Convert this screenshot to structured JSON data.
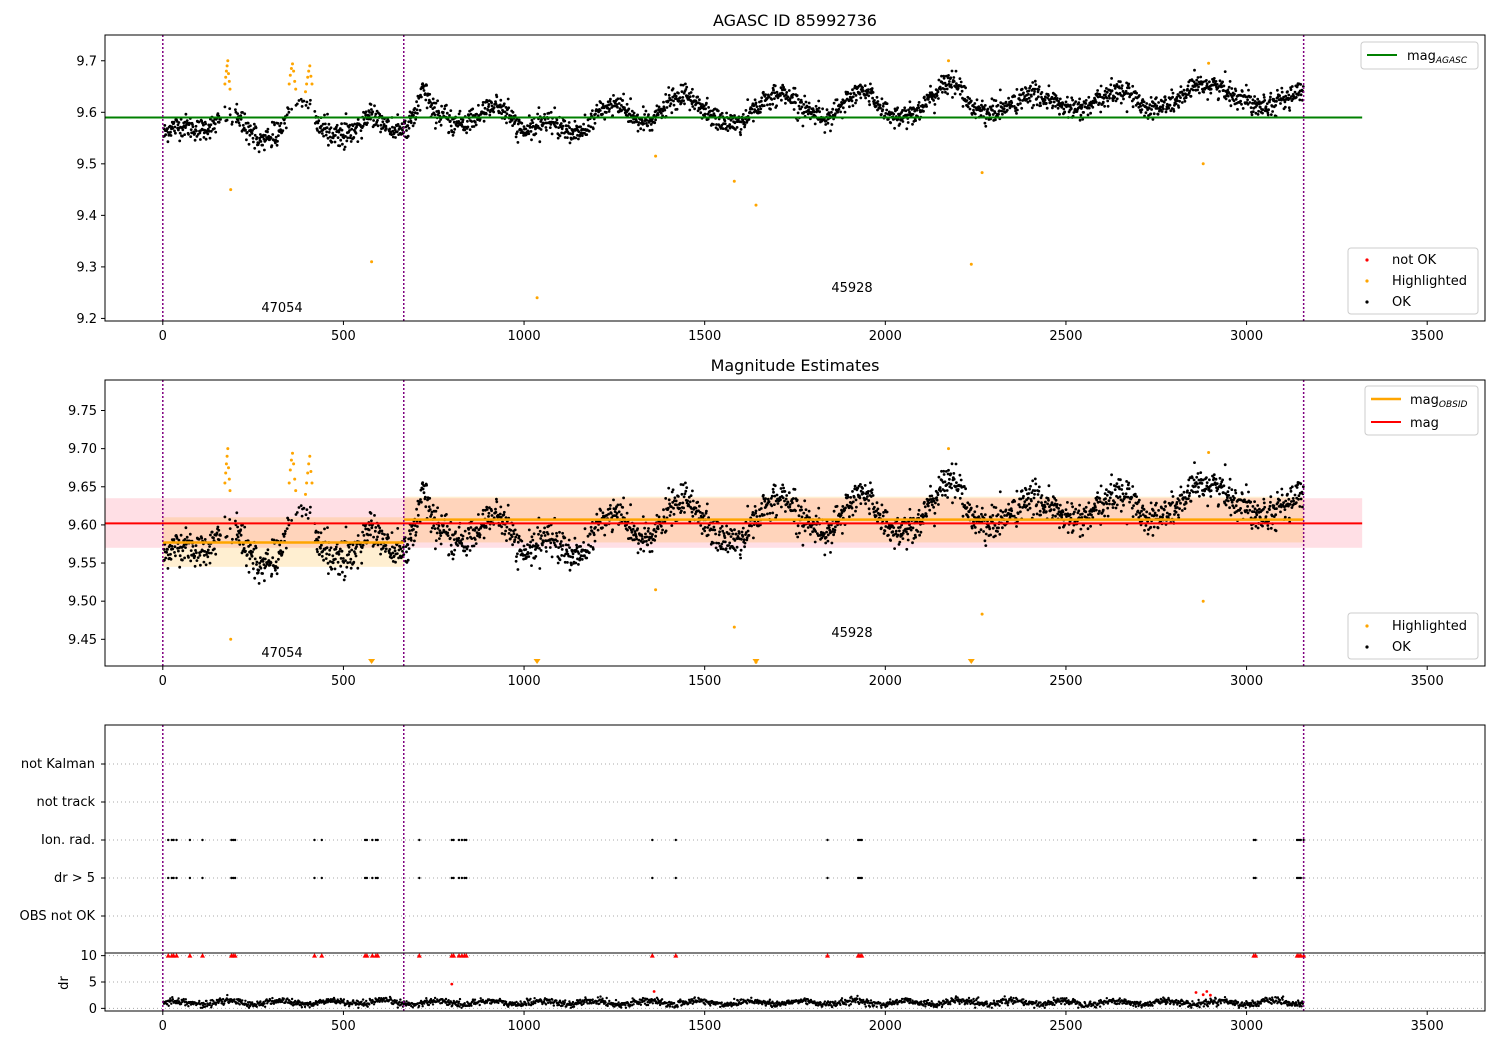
{
  "chart_data": [
    {
      "type": "scatter",
      "title": "AGASC ID 85992736",
      "xlabel": "",
      "ylabel": "",
      "xlim": [
        -160,
        3660
      ],
      "ylim": [
        9.195,
        9.75
      ],
      "xticks": [
        0,
        500,
        1000,
        1500,
        2000,
        2500,
        3000,
        3500
      ],
      "yticks": [
        9.2,
        9.3,
        9.4,
        9.5,
        9.6,
        9.7
      ],
      "hlines": [
        {
          "name": "mag_AGASC",
          "y": 9.59,
          "x_range": [
            -160,
            3320
          ],
          "color": "#008000"
        }
      ],
      "obsid_boundaries": [
        0,
        667,
        3158
      ],
      "annotations": [
        {
          "text": "47054",
          "x": 333,
          "y": 9.215
        },
        {
          "text": "45928",
          "x": 1912,
          "y": 9.255
        }
      ],
      "series": [
        {
          "name": "not OK",
          "color": "#ff0000",
          "points": []
        },
        {
          "name": "Highlighted",
          "color": "#ffa500",
          "points": [
            [
              172,
              9.655
            ],
            [
              174,
              9.668
            ],
            [
              176,
              9.68
            ],
            [
              178,
              9.69
            ],
            [
              180,
              9.7
            ],
            [
              182,
              9.675
            ],
            [
              184,
              9.66
            ],
            [
              186,
              9.645
            ],
            [
              188,
              9.45
            ],
            [
              350,
              9.655
            ],
            [
              353,
              9.672
            ],
            [
              356,
              9.685
            ],
            [
              359,
              9.694
            ],
            [
              362,
              9.68
            ],
            [
              365,
              9.66
            ],
            [
              368,
              9.645
            ],
            [
              395,
              9.64
            ],
            [
              398,
              9.655
            ],
            [
              401,
              9.668
            ],
            [
              404,
              9.68
            ],
            [
              407,
              9.69
            ],
            [
              410,
              9.67
            ],
            [
              413,
              9.655
            ],
            [
              578,
              9.31
            ],
            [
              1036,
              9.24
            ],
            [
              1364,
              9.515
            ],
            [
              1582,
              9.466
            ],
            [
              1642,
              9.42
            ],
            [
              2175,
              9.7
            ],
            [
              2238,
              9.305
            ],
            [
              2268,
              9.483
            ],
            [
              2880,
              9.5
            ],
            [
              2895,
              9.695
            ]
          ]
        },
        {
          "name": "OK",
          "color": "#000000",
          "trend": [
            [
              0,
              9.555
            ],
            [
              20,
              9.57
            ],
            [
              60,
              9.575
            ],
            [
              100,
              9.565
            ],
            [
              140,
              9.575
            ],
            [
              180,
              9.595
            ],
            [
              210,
              9.585
            ],
            [
              240,
              9.56
            ],
            [
              280,
              9.545
            ],
            [
              310,
              9.555
            ],
            [
              335,
              9.58
            ],
            [
              360,
              9.615
            ],
            [
              390,
              9.625
            ],
            [
              410,
              9.615
            ],
            [
              430,
              9.57
            ],
            [
              470,
              9.56
            ],
            [
              510,
              9.555
            ],
            [
              550,
              9.575
            ],
            [
              580,
              9.6
            ],
            [
              610,
              9.58
            ],
            [
              650,
              9.56
            ],
            [
              667,
              9.565
            ],
            [
              690,
              9.59
            ],
            [
              720,
              9.64
            ],
            [
              760,
              9.6
            ],
            [
              800,
              9.575
            ],
            [
              840,
              9.58
            ],
            [
              880,
              9.595
            ],
            [
              920,
              9.62
            ],
            [
              960,
              9.59
            ],
            [
              1000,
              9.56
            ],
            [
              1040,
              9.575
            ],
            [
              1080,
              9.585
            ],
            [
              1120,
              9.565
            ],
            [
              1160,
              9.56
            ],
            [
              1200,
              9.595
            ],
            [
              1240,
              9.615
            ],
            [
              1280,
              9.605
            ],
            [
              1320,
              9.58
            ],
            [
              1360,
              9.585
            ],
            [
              1400,
              9.62
            ],
            [
              1440,
              9.63
            ],
            [
              1480,
              9.62
            ],
            [
              1520,
              9.59
            ],
            [
              1560,
              9.58
            ],
            [
              1600,
              9.58
            ],
            [
              1640,
              9.61
            ],
            [
              1680,
              9.625
            ],
            [
              1720,
              9.64
            ],
            [
              1760,
              9.615
            ],
            [
              1800,
              9.6
            ],
            [
              1840,
              9.59
            ],
            [
              1880,
              9.61
            ],
            [
              1920,
              9.64
            ],
            [
              1960,
              9.635
            ],
            [
              2000,
              9.6
            ],
            [
              2040,
              9.59
            ],
            [
              2080,
              9.6
            ],
            [
              2120,
              9.62
            ],
            [
              2160,
              9.655
            ],
            [
              2200,
              9.655
            ],
            [
              2240,
              9.61
            ],
            [
              2280,
              9.6
            ],
            [
              2320,
              9.605
            ],
            [
              2360,
              9.62
            ],
            [
              2400,
              9.635
            ],
            [
              2440,
              9.63
            ],
            [
              2480,
              9.615
            ],
            [
              2520,
              9.605
            ],
            [
              2560,
              9.61
            ],
            [
              2600,
              9.625
            ],
            [
              2640,
              9.645
            ],
            [
              2680,
              9.635
            ],
            [
              2720,
              9.61
            ],
            [
              2760,
              9.61
            ],
            [
              2800,
              9.62
            ],
            [
              2840,
              9.64
            ],
            [
              2880,
              9.655
            ],
            [
              2920,
              9.65
            ],
            [
              2960,
              9.635
            ],
            [
              3000,
              9.625
            ],
            [
              3040,
              9.615
            ],
            [
              3080,
              9.62
            ],
            [
              3120,
              9.63
            ],
            [
              3158,
              9.64
            ]
          ],
          "scatter": 0.011,
          "count": 2600
        }
      ]
    },
    {
      "type": "scatter",
      "title": "Magnitude Estimates",
      "xlabel": "",
      "ylabel": "",
      "xlim": [
        -160,
        3660
      ],
      "ylim": [
        9.415,
        9.79
      ],
      "xticks": [
        0,
        500,
        1000,
        1500,
        2000,
        2500,
        3000,
        3500
      ],
      "yticks": [
        9.45,
        9.5,
        9.55,
        9.6,
        9.65,
        9.7,
        9.75
      ],
      "mag": {
        "name": "mag",
        "y": 9.602,
        "band": [
          9.57,
          9.635
        ],
        "x_range": [
          -160,
          3320
        ],
        "color": "#ff0000"
      },
      "mag_obsid": [
        {
          "name": "mag_OBSID",
          "x_range": [
            0,
            667
          ],
          "y": 9.577,
          "band": [
            9.545,
            9.61
          ]
        },
        {
          "name": "mag_OBSID",
          "x_range": [
            667,
            3158
          ],
          "y": 9.607,
          "band": [
            9.577,
            9.637
          ]
        }
      ],
      "obsid_boundaries": [
        0,
        667,
        3158
      ],
      "annotations": [
        {
          "text": "47054",
          "x": 333,
          "y": 9.433
        },
        {
          "text": "45928",
          "x": 1912,
          "y": 9.454
        }
      ],
      "below_limit_markers": [
        578,
        1036,
        1642,
        2238
      ],
      "series": [
        {
          "name": "Highlighted",
          "color": "#ffa500"
        },
        {
          "name": "OK",
          "color": "#000000"
        }
      ]
    },
    {
      "type": "scatter",
      "title": "",
      "categories": [
        "not Kalman",
        "not track",
        "Ion. rad.",
        "dr > 5",
        "OBS not OK"
      ],
      "flags": {
        "not Kalman": [],
        "not track": [],
        "Ion. rad.": [
          15,
          25,
          30,
          38,
          75,
          110,
          190,
          195,
          200,
          420,
          440,
          560,
          565,
          580,
          590,
          595,
          710,
          800,
          805,
          820,
          828,
          835,
          840,
          1355,
          1420,
          1840,
          1925,
          1930,
          1935,
          3020,
          3025,
          3140,
          3145,
          3150,
          3158
        ],
        "dr > 5": [
          15,
          25,
          30,
          38,
          75,
          110,
          190,
          195,
          200,
          420,
          440,
          560,
          565,
          580,
          590,
          595,
          710,
          800,
          805,
          820,
          828,
          835,
          840,
          1355,
          1420,
          1840,
          1925,
          1930,
          1935,
          3020,
          3025,
          3140,
          3145,
          3150,
          3158
        ],
        "OBS not OK": []
      },
      "xlim": [
        -160,
        3660
      ],
      "obsid_boundaries": [
        0,
        667,
        3158
      ]
    },
    {
      "type": "scatter",
      "title": "",
      "ylabel": "dr",
      "xlim": [
        -160,
        3660
      ],
      "ylim": [
        -0.5,
        10.5
      ],
      "xticks": [
        0,
        500,
        1000,
        1500,
        2000,
        2500,
        3000,
        3500
      ],
      "yticks": [
        0,
        5,
        10
      ],
      "clipped_high": [
        15,
        25,
        30,
        38,
        75,
        110,
        190,
        195,
        200,
        420,
        440,
        560,
        565,
        580,
        590,
        595,
        710,
        800,
        805,
        820,
        828,
        835,
        840,
        1355,
        1420,
        1840,
        1925,
        1930,
        1935,
        3020,
        3025,
        3140,
        3145,
        3150,
        3158
      ],
      "outliers": [
        [
          800,
          4.6
        ],
        [
          1360,
          3.2
        ],
        [
          2860,
          3.0
        ],
        [
          2880,
          2.6
        ],
        [
          2890,
          3.2
        ],
        [
          2900,
          2.5
        ]
      ],
      "baseline": {
        "mean": 1.1,
        "spread": 0.7
      },
      "obsid_boundaries": [
        0,
        667,
        3158
      ]
    }
  ],
  "legend1": {
    "line": "mag",
    "line_sub": "AGASC",
    "items": [
      "not OK",
      "Highlighted",
      "OK"
    ]
  },
  "legend2": {
    "line1": "mag",
    "line1_sub": "OBSID",
    "line2": "mag",
    "items": [
      "Highlighted",
      "OK"
    ]
  },
  "colors": {
    "ok": "#000000",
    "highlighted": "#ffa500",
    "not_ok": "#ff0000",
    "agasc": "#008000",
    "mag": "#ff0000",
    "obsid": "#ffa500",
    "boundary": "#800080"
  }
}
